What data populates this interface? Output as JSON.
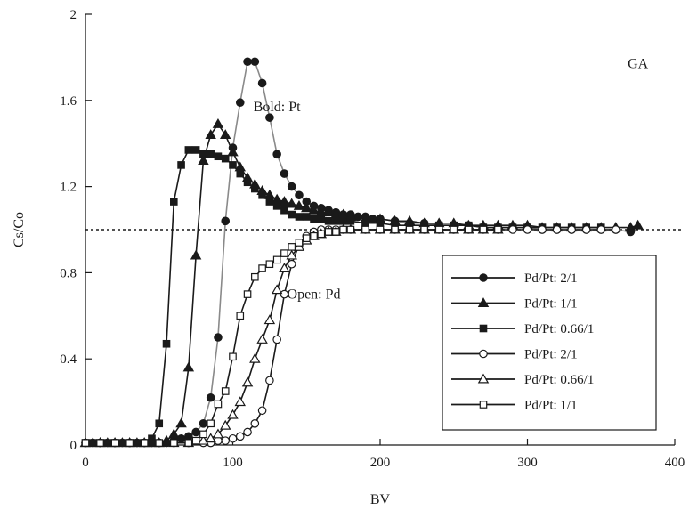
{
  "chart_data": {
    "type": "line",
    "xlabel": "BV",
    "ylabel": "Cs/Co",
    "xlim": [
      0,
      400
    ],
    "ylim": [
      0,
      2
    ],
    "x_ticks": [
      0,
      100,
      200,
      300,
      400
    ],
    "y_ticks": [
      0,
      0.4,
      0.8,
      1.2,
      1.6,
      2
    ],
    "y_tick_labels": [
      "0",
      "0.4",
      "0.8",
      "1.2",
      "1.6",
      "2"
    ],
    "reference_line": {
      "y": 1.0,
      "style": "dotted"
    },
    "grid": false,
    "legend_position": "lower-right",
    "annotations": [
      {
        "text": "GA",
        "x": 375,
        "y": 1.75
      },
      {
        "text": "Bold: Pt",
        "x": 130,
        "y": 1.55
      },
      {
        "text": "Open: Pd",
        "x": 155,
        "y": 0.68
      }
    ],
    "series": [
      {
        "name": "Pd/Pt: 2/1",
        "marker": "circle",
        "filled": true,
        "line_color": "#8a8a8a",
        "x": [
          0,
          5,
          10,
          15,
          20,
          25,
          30,
          35,
          40,
          45,
          50,
          55,
          60,
          65,
          70,
          75,
          80,
          85,
          90,
          95,
          100,
          105,
          110,
          115,
          120,
          125,
          130,
          135,
          140,
          145,
          150,
          155,
          160,
          165,
          170,
          175,
          180,
          185,
          190,
          195,
          200,
          210,
          220,
          230,
          240,
          250,
          260,
          270,
          280,
          290,
          300,
          310,
          320,
          330,
          340,
          350,
          360,
          370
        ],
        "y": [
          0.01,
          0.01,
          0.01,
          0.01,
          0.01,
          0.01,
          0.01,
          0.01,
          0.01,
          0.01,
          0.01,
          0.01,
          0.02,
          0.03,
          0.04,
          0.06,
          0.1,
          0.22,
          0.5,
          1.04,
          1.38,
          1.59,
          1.78,
          1.78,
          1.68,
          1.52,
          1.35,
          1.26,
          1.2,
          1.16,
          1.13,
          1.11,
          1.1,
          1.09,
          1.08,
          1.07,
          1.07,
          1.06,
          1.06,
          1.05,
          1.05,
          1.04,
          1.03,
          1.03,
          1.02,
          1.02,
          1.02,
          1.01,
          1.01,
          1.01,
          1.01,
          1.0,
          1.0,
          1.0,
          1.0,
          1.0,
          1.0,
          0.99
        ]
      },
      {
        "name": "Pd/Pt: 1/1",
        "marker": "triangle",
        "filled": true,
        "line_color": "#1a1a1a",
        "x": [
          0,
          5,
          10,
          15,
          20,
          25,
          30,
          35,
          40,
          45,
          50,
          55,
          60,
          65,
          70,
          75,
          80,
          85,
          90,
          95,
          100,
          105,
          110,
          115,
          120,
          125,
          130,
          135,
          140,
          145,
          150,
          155,
          160,
          165,
          170,
          175,
          180,
          190,
          200,
          210,
          220,
          230,
          240,
          250,
          260,
          270,
          280,
          290,
          300,
          310,
          320,
          330,
          340,
          350,
          360,
          370,
          375
        ],
        "y": [
          0.01,
          0.01,
          0.01,
          0.01,
          0.01,
          0.01,
          0.01,
          0.01,
          0.01,
          0.01,
          0.01,
          0.02,
          0.05,
          0.1,
          0.36,
          0.88,
          1.32,
          1.44,
          1.49,
          1.44,
          1.36,
          1.29,
          1.24,
          1.21,
          1.18,
          1.16,
          1.14,
          1.13,
          1.12,
          1.11,
          1.1,
          1.09,
          1.08,
          1.08,
          1.07,
          1.07,
          1.06,
          1.05,
          1.05,
          1.04,
          1.04,
          1.03,
          1.03,
          1.03,
          1.02,
          1.02,
          1.02,
          1.02,
          1.02,
          1.01,
          1.01,
          1.01,
          1.01,
          1.01,
          1.01,
          1.01,
          1.02
        ]
      },
      {
        "name": "Pd/Pt: 0.66/1",
        "marker": "square",
        "filled": true,
        "line_color": "#1a1a1a",
        "x": [
          0,
          5,
          10,
          15,
          20,
          25,
          30,
          35,
          40,
          45,
          50,
          55,
          60,
          65,
          70,
          75,
          80,
          85,
          90,
          95,
          100,
          105,
          110,
          115,
          120,
          125,
          130,
          135,
          140,
          145,
          150,
          155,
          160,
          165,
          170,
          175,
          180,
          190,
          200,
          210,
          220,
          230,
          240,
          250,
          260,
          270,
          280,
          290,
          300,
          310,
          320,
          330,
          340,
          350
        ],
        "y": [
          0.01,
          0.01,
          0.01,
          0.01,
          0.01,
          0.01,
          0.01,
          0.01,
          0.01,
          0.03,
          0.1,
          0.47,
          1.13,
          1.3,
          1.37,
          1.37,
          1.35,
          1.35,
          1.34,
          1.33,
          1.3,
          1.26,
          1.22,
          1.19,
          1.16,
          1.13,
          1.11,
          1.09,
          1.07,
          1.06,
          1.06,
          1.05,
          1.05,
          1.04,
          1.04,
          1.04,
          1.04,
          1.03,
          1.03,
          1.02,
          1.02,
          1.02,
          1.02,
          1.02,
          1.02,
          1.01,
          1.01,
          1.01,
          1.01,
          1.01,
          1.01,
          1.01,
          1.01,
          1.01
        ]
      },
      {
        "name": "Pd/Pt: 2/1",
        "marker": "circle",
        "filled": false,
        "line_color": "#1a1a1a",
        "x": [
          0,
          10,
          20,
          30,
          40,
          50,
          60,
          70,
          80,
          85,
          90,
          95,
          100,
          105,
          110,
          115,
          120,
          125,
          130,
          135,
          140,
          145,
          150,
          155,
          160,
          165,
          170,
          175,
          180,
          190,
          200,
          210,
          220,
          230,
          240,
          250,
          260,
          270,
          280,
          290,
          300,
          310,
          320,
          330,
          340,
          350,
          360
        ],
        "y": [
          0.01,
          0.01,
          0.01,
          0.01,
          0.01,
          0.01,
          0.01,
          0.01,
          0.01,
          0.01,
          0.02,
          0.02,
          0.03,
          0.04,
          0.06,
          0.1,
          0.16,
          0.3,
          0.49,
          0.7,
          0.84,
          0.93,
          0.97,
          0.99,
          1.0,
          1.0,
          1.0,
          1.0,
          1.0,
          1.0,
          1.0,
          1.0,
          1.0,
          1.0,
          1.0,
          1.0,
          1.0,
          1.0,
          1.0,
          1.0,
          1.0,
          1.0,
          1.0,
          1.0,
          1.0,
          1.0,
          1.0
        ]
      },
      {
        "name": "Pd/Pt: 0.66/1",
        "marker": "triangle",
        "filled": false,
        "line_color": "#1a1a1a",
        "x": [
          0,
          10,
          20,
          30,
          40,
          50,
          60,
          70,
          80,
          85,
          90,
          95,
          100,
          105,
          110,
          115,
          120,
          125,
          130,
          135,
          140,
          145,
          150,
          155,
          160,
          165,
          170,
          175,
          180,
          190,
          200,
          210,
          220,
          230,
          240,
          250,
          260,
          270,
          280
        ],
        "y": [
          0.01,
          0.01,
          0.01,
          0.01,
          0.01,
          0.01,
          0.01,
          0.01,
          0.02,
          0.03,
          0.05,
          0.09,
          0.14,
          0.2,
          0.29,
          0.4,
          0.49,
          0.58,
          0.72,
          0.82,
          0.88,
          0.92,
          0.95,
          0.97,
          0.98,
          0.99,
          0.99,
          1.0,
          1.0,
          1.0,
          1.0,
          1.0,
          1.0,
          1.0,
          1.0,
          1.0,
          1.0,
          1.0,
          1.0
        ]
      },
      {
        "name": "Pd/Pt: 1/1",
        "marker": "square",
        "filled": false,
        "line_color": "#1a1a1a",
        "x": [
          0,
          10,
          20,
          30,
          40,
          50,
          60,
          70,
          75,
          80,
          85,
          90,
          95,
          100,
          105,
          110,
          115,
          120,
          125,
          130,
          135,
          140,
          145,
          150,
          155,
          160,
          165,
          170,
          175,
          180,
          190,
          200,
          210,
          220,
          230,
          240,
          250,
          260,
          270,
          280
        ],
        "y": [
          0.01,
          0.01,
          0.01,
          0.01,
          0.01,
          0.01,
          0.01,
          0.01,
          0.02,
          0.05,
          0.1,
          0.19,
          0.25,
          0.41,
          0.6,
          0.7,
          0.78,
          0.82,
          0.84,
          0.86,
          0.89,
          0.92,
          0.94,
          0.96,
          0.97,
          0.98,
          0.99,
          0.99,
          1.0,
          1.0,
          1.0,
          1.0,
          1.0,
          1.0,
          1.0,
          1.0,
          1.0,
          1.0,
          1.0,
          1.0
        ]
      }
    ]
  }
}
